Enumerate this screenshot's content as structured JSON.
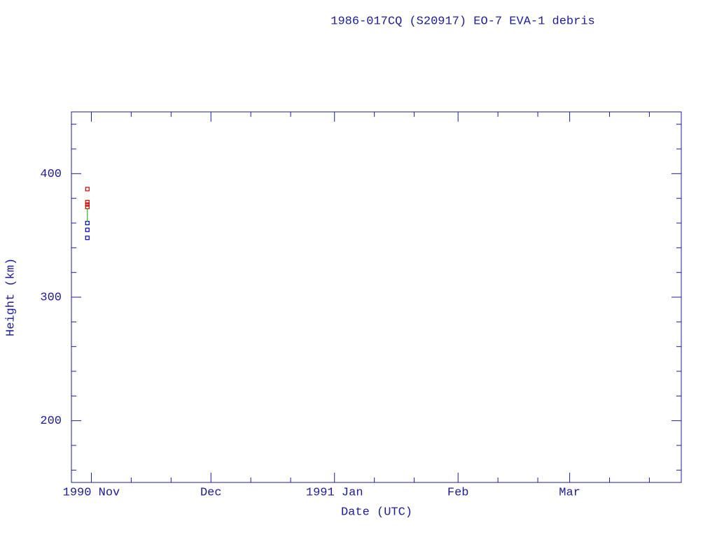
{
  "chart_data": {
    "type": "scatter",
    "title": "1986-017CQ (S20917) EO-7 EVA-1 debris",
    "x_label": "Date (UTC)",
    "y_label": "Height (km)",
    "xlim": [
      "1990-10-27",
      "1991-03-29"
    ],
    "xticks": [
      {
        "value": "1990-11",
        "label": "1990 Nov"
      },
      {
        "value": "1990-12",
        "label": "Dec"
      },
      {
        "value": "1991-01",
        "label": "1991 Jan"
      },
      {
        "value": "1991-02",
        "label": "Feb"
      },
      {
        "value": "1991-03",
        "label": "Mar"
      }
    ],
    "xminor_ticks": [
      "1990-11-11",
      "1990-11-21",
      "1990-12-11",
      "1990-12-21",
      "1991-01-11",
      "1991-01-21",
      "1991-02-11",
      "1991-02-21",
      "1991-03-11",
      "1991-03-21"
    ],
    "ylim": [
      150,
      450
    ],
    "yticks": [
      200,
      300,
      400
    ],
    "yminor_ticks": [
      160,
      180,
      220,
      240,
      260,
      280,
      320,
      340,
      360,
      380,
      420,
      440
    ],
    "series": [
      {
        "color": "#cc0000",
        "marker": "square",
        "x": [
          "1990-10-31",
          "1990-10-31",
          "1990-10-31",
          "1990-10-31"
        ],
        "values": [
          387.5,
          377,
          375,
          373
        ]
      },
      {
        "color": "#0000cc",
        "marker": "square",
        "x": [
          "1990-10-31",
          "1990-10-31",
          "1990-10-31"
        ],
        "values": [
          360,
          354.5,
          348
        ]
      },
      {
        "color": "#00aa00",
        "marker": "line",
        "x": [
          "1990-10-31",
          "1990-10-31"
        ],
        "values": [
          372,
          361
        ]
      }
    ]
  }
}
